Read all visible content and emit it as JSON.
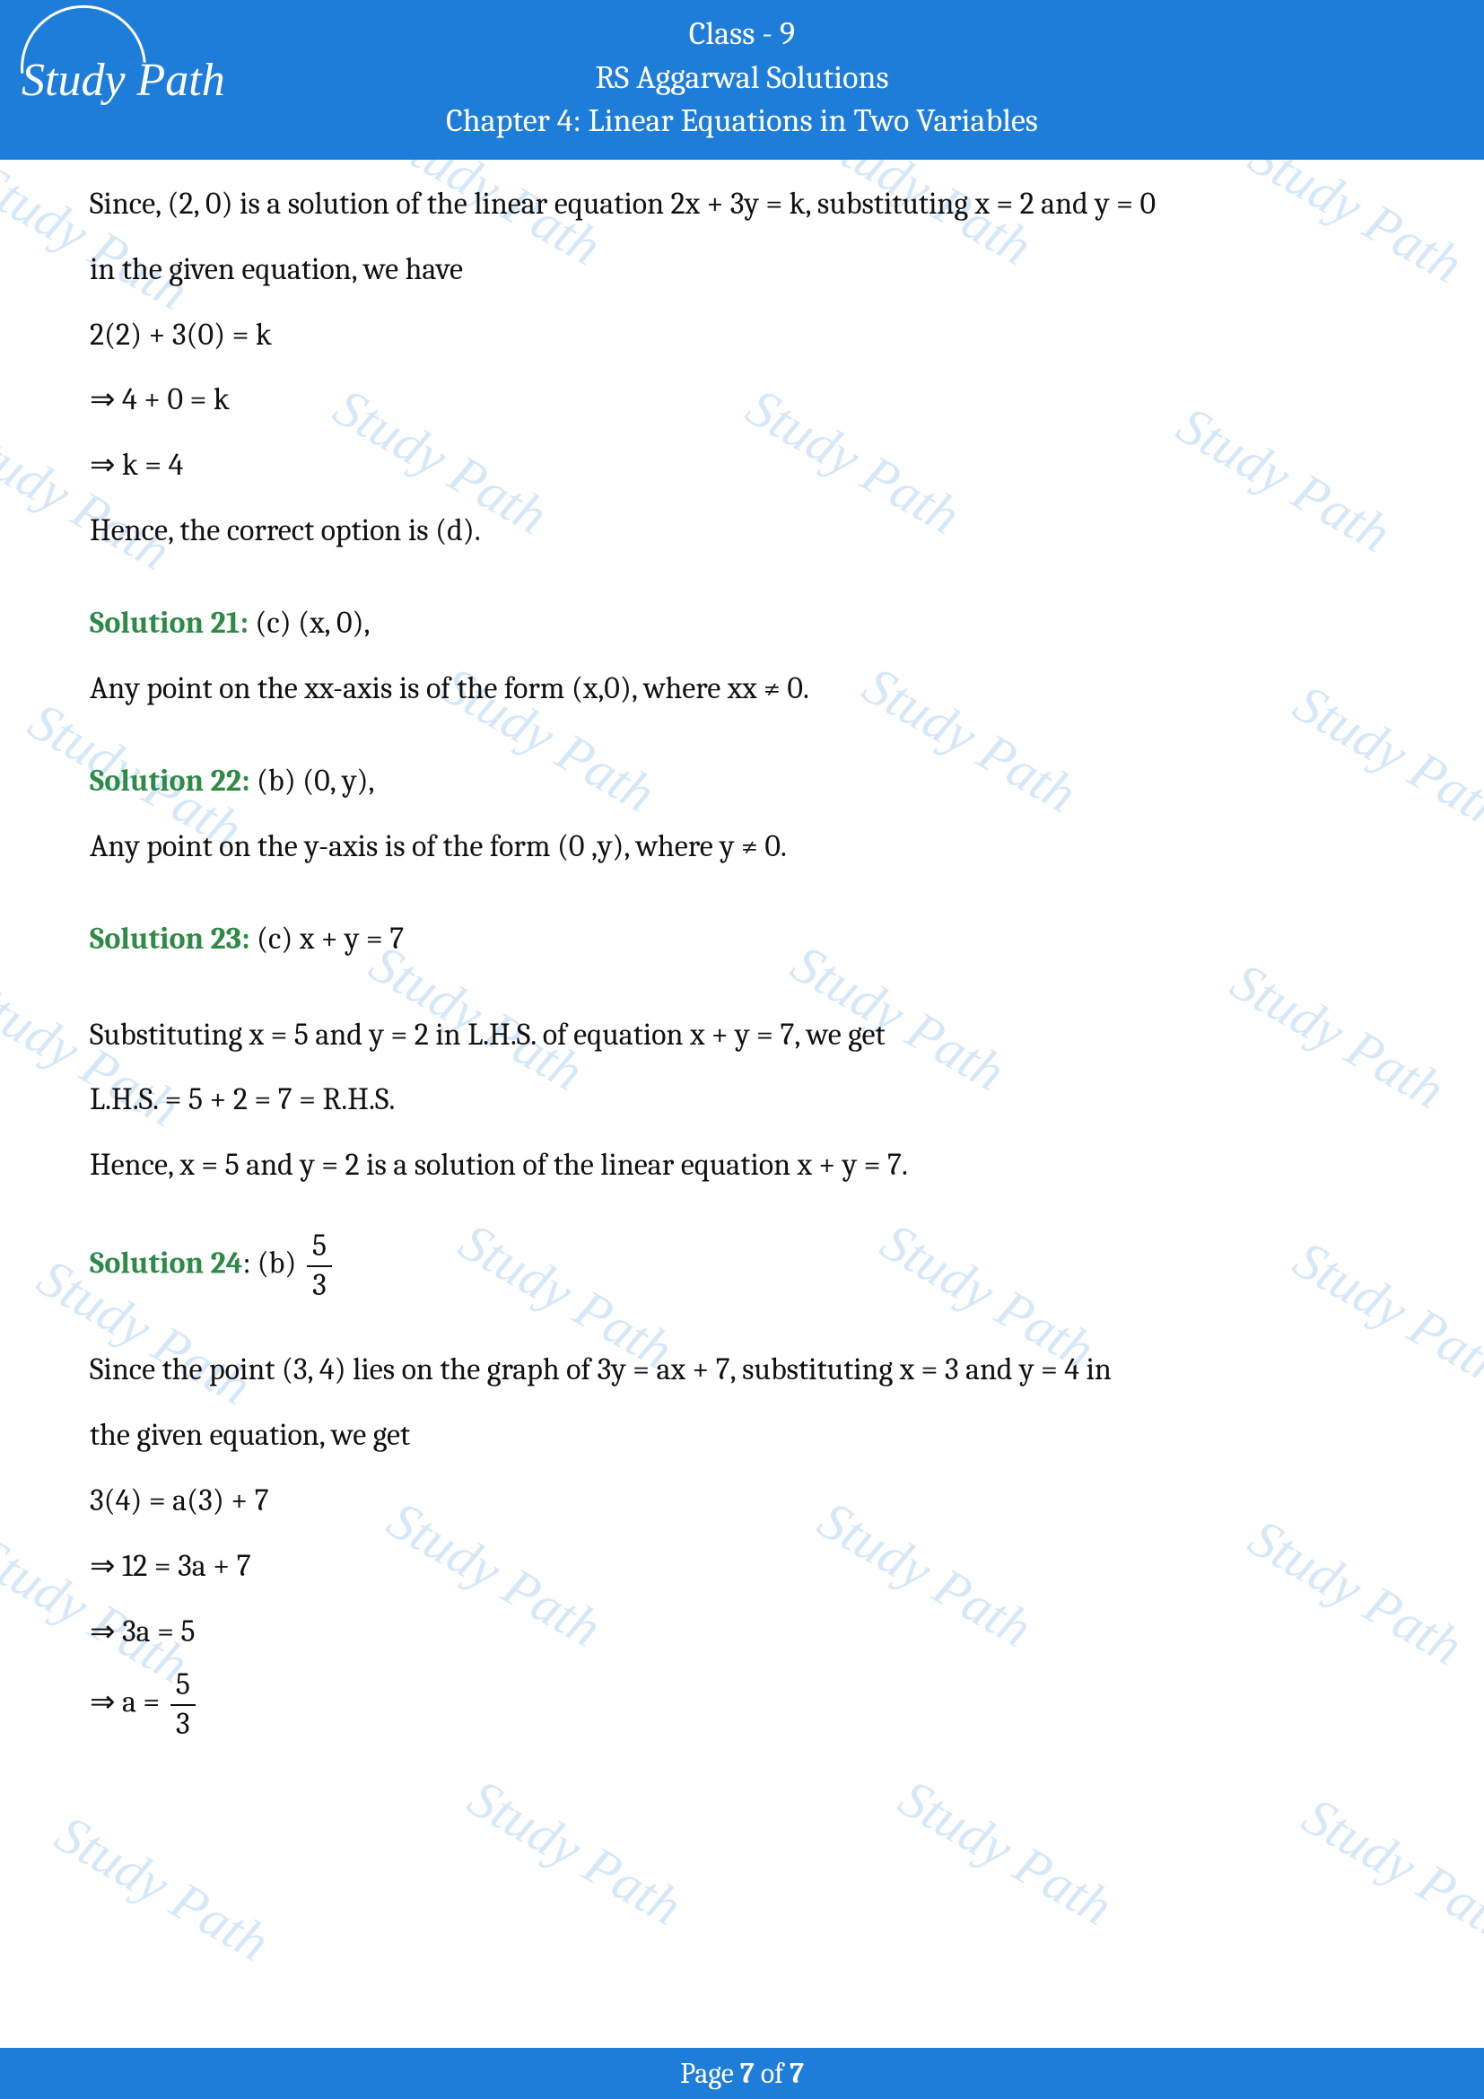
{
  "header": {
    "class_line": "Class - 9",
    "title": "RS Aggarwal Solutions",
    "chapter": "Chapter 4: Linear Equations in Two Variables",
    "logo_text": "Study Path",
    "bg_color": "#1e7dd8",
    "text_color": "#ffffff",
    "font_size": 36
  },
  "body": {
    "font_size": 34,
    "text_color": "#111111",
    "label_color": "#2e8a46",
    "background_color": "#ffffff",
    "intro": {
      "line1": "Since, (2, 0) is a solution of the linear equation 2x + 3y = k, substituting x = 2 and y = 0",
      "line2": "in the given equation, we have",
      "eq1": "2(2) + 3(0) = k",
      "eq2": "⇒ 4 + 0 = k",
      "eq3": "⇒ k = 4",
      "conclusion": "Hence, the correct option is (d)."
    },
    "sol21": {
      "label": "Solution 21:",
      "answer": " (c) (x, 0),",
      "text": "Any point on the xx-axis is of the form (x,0), where xx ≠ 0."
    },
    "sol22": {
      "label": "Solution 22:",
      "answer": " (b) (0, y),",
      "text": "Any point on the y-axis is of the form (0 ,y), where y ≠ 0."
    },
    "sol23": {
      "label": "Solution 23:",
      "answer": " (c) x + y = 7",
      "line1": "Substituting x = 5 and y = 2 in L.H.S. of equation x + y = 7, we get",
      "line2": "L.H.S. = 5 + 2 = 7 = R.H.S.",
      "line3": "Hence, x = 5 and y = 2 is a solution of the linear equation x + y = 7."
    },
    "sol24": {
      "label": "Solution 24",
      "answer_prefix": ": (b) ",
      "frac_num": "5",
      "frac_den": "3",
      "line1": "Since the point (3, 4) lies on the graph of 3y = ax + 7, substituting x = 3 and y = 4 in",
      "line2": "the given equation, we get",
      "eq1": "3(4) = a(3) + 7",
      "eq2": "⇒ 12 = 3a + 7",
      "eq3": "⇒ 3a = 5",
      "eq4_prefix": "⇒ a = ",
      "eq4_num": "5",
      "eq4_den": "3"
    }
  },
  "footer": {
    "prefix": "Page ",
    "page_num": "7",
    "mid": " of ",
    "total": "7",
    "bg_color": "#1e7dd8",
    "text_color": "#ffffff"
  },
  "watermark": {
    "text": "Study Path",
    "color": "rgba(30,125,216,0.18)",
    "rotation_deg": 30,
    "font_size": 60,
    "positions": [
      [
        -40,
        230
      ],
      [
        420,
        180
      ],
      [
        900,
        180
      ],
      [
        1380,
        200
      ],
      [
        -60,
        520
      ],
      [
        360,
        480
      ],
      [
        820,
        480
      ],
      [
        1300,
        500
      ],
      [
        20,
        830
      ],
      [
        480,
        790
      ],
      [
        950,
        790
      ],
      [
        1430,
        810
      ],
      [
        -50,
        1140
      ],
      [
        400,
        1100
      ],
      [
        870,
        1100
      ],
      [
        1360,
        1120
      ],
      [
        30,
        1450
      ],
      [
        500,
        1410
      ],
      [
        970,
        1410
      ],
      [
        1430,
        1430
      ],
      [
        -40,
        1760
      ],
      [
        420,
        1720
      ],
      [
        900,
        1720
      ],
      [
        1380,
        1740
      ],
      [
        50,
        2070
      ],
      [
        510,
        2030
      ],
      [
        990,
        2030
      ],
      [
        1440,
        2050
      ]
    ]
  }
}
